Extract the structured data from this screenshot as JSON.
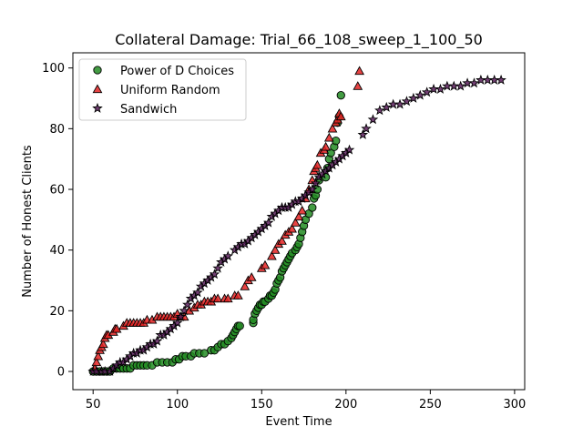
{
  "chart_data": {
    "type": "scatter",
    "title": "Collateral Damage: Trial_66_108_sweep_1_100_50",
    "xlabel": "Event Time",
    "ylabel": "Number of Honest Clients",
    "xlim": [
      38,
      306
    ],
    "ylim": [
      -6,
      105
    ],
    "xticks": [
      50,
      100,
      150,
      200,
      250,
      300
    ],
    "yticks": [
      0,
      20,
      40,
      60,
      80,
      100
    ],
    "legend_position": "top-left",
    "grid": false,
    "series": [
      {
        "name": "Power of D Choices",
        "marker": "circle",
        "color": "#228b22",
        "points": [
          [
            50,
            0
          ],
          [
            52,
            0
          ],
          [
            54,
            0
          ],
          [
            56,
            0
          ],
          [
            58,
            0
          ],
          [
            60,
            0
          ],
          [
            62,
            1
          ],
          [
            64,
            1
          ],
          [
            66,
            1
          ],
          [
            68,
            1
          ],
          [
            70,
            1
          ],
          [
            72,
            1
          ],
          [
            74,
            2
          ],
          [
            76,
            2
          ],
          [
            78,
            2
          ],
          [
            80,
            2
          ],
          [
            82,
            2
          ],
          [
            85,
            2
          ],
          [
            88,
            3
          ],
          [
            91,
            3
          ],
          [
            94,
            3
          ],
          [
            97,
            3
          ],
          [
            99,
            4
          ],
          [
            101,
            4
          ],
          [
            103,
            5
          ],
          [
            105,
            5
          ],
          [
            108,
            5
          ],
          [
            110,
            6
          ],
          [
            113,
            6
          ],
          [
            116,
            6
          ],
          [
            120,
            7
          ],
          [
            122,
            7
          ],
          [
            124,
            8
          ],
          [
            126,
            9
          ],
          [
            128,
            9
          ],
          [
            130,
            10
          ],
          [
            132,
            11
          ],
          [
            133,
            12
          ],
          [
            134,
            13
          ],
          [
            135,
            14
          ],
          [
            136,
            15
          ],
          [
            137,
            15
          ],
          [
            145,
            16
          ],
          [
            145,
            17
          ],
          [
            146,
            19
          ],
          [
            147,
            20
          ],
          [
            148,
            21
          ],
          [
            149,
            22
          ],
          [
            150,
            22
          ],
          [
            151,
            23
          ],
          [
            152,
            23
          ],
          [
            154,
            24
          ],
          [
            155,
            25
          ],
          [
            156,
            25
          ],
          [
            157,
            26
          ],
          [
            158,
            27
          ],
          [
            159,
            29
          ],
          [
            160,
            30
          ],
          [
            161,
            31
          ],
          [
            162,
            33
          ],
          [
            163,
            34
          ],
          [
            164,
            35
          ],
          [
            165,
            36
          ],
          [
            166,
            37
          ],
          [
            167,
            38
          ],
          [
            168,
            39
          ],
          [
            170,
            40
          ],
          [
            171,
            41
          ],
          [
            172,
            42
          ],
          [
            173,
            44
          ],
          [
            174,
            46
          ],
          [
            175,
            48
          ],
          [
            176,
            50
          ],
          [
            178,
            52
          ],
          [
            180,
            54
          ],
          [
            181,
            57
          ],
          [
            182,
            58
          ],
          [
            183,
            60
          ],
          [
            184,
            63
          ],
          [
            188,
            64
          ],
          [
            189,
            67
          ],
          [
            190,
            70
          ],
          [
            191,
            72
          ],
          [
            193,
            74
          ],
          [
            194,
            76
          ],
          [
            195,
            82
          ],
          [
            196,
            84
          ],
          [
            197,
            91
          ]
        ]
      },
      {
        "name": "Uniform Random",
        "marker": "triangle",
        "color": "#e32222",
        "points": [
          [
            51,
            1
          ],
          [
            52,
            3
          ],
          [
            53,
            5
          ],
          [
            54,
            7
          ],
          [
            55,
            8
          ],
          [
            56,
            9
          ],
          [
            57,
            11
          ],
          [
            58,
            12
          ],
          [
            59,
            12
          ],
          [
            62,
            13
          ],
          [
            63,
            14
          ],
          [
            64,
            14
          ],
          [
            68,
            15
          ],
          [
            70,
            16
          ],
          [
            72,
            16
          ],
          [
            74,
            16
          ],
          [
            76,
            16
          ],
          [
            78,
            16
          ],
          [
            80,
            16
          ],
          [
            82,
            17
          ],
          [
            85,
            17
          ],
          [
            88,
            18
          ],
          [
            90,
            18
          ],
          [
            92,
            18
          ],
          [
            94,
            18
          ],
          [
            96,
            18
          ],
          [
            98,
            18
          ],
          [
            100,
            19
          ],
          [
            102,
            18
          ],
          [
            104,
            18
          ],
          [
            107,
            20
          ],
          [
            110,
            21
          ],
          [
            112,
            22
          ],
          [
            114,
            22
          ],
          [
            116,
            23
          ],
          [
            118,
            23
          ],
          [
            120,
            23
          ],
          [
            122,
            24
          ],
          [
            124,
            24
          ],
          [
            128,
            24
          ],
          [
            130,
            24
          ],
          [
            134,
            25
          ],
          [
            136,
            25
          ],
          [
            140,
            28
          ],
          [
            142,
            30
          ],
          [
            144,
            31
          ],
          [
            150,
            34
          ],
          [
            152,
            35
          ],
          [
            156,
            38
          ],
          [
            158,
            40
          ],
          [
            160,
            42
          ],
          [
            162,
            43
          ],
          [
            164,
            45
          ],
          [
            166,
            46
          ],
          [
            168,
            47
          ],
          [
            170,
            49
          ],
          [
            172,
            51
          ],
          [
            174,
            53
          ],
          [
            176,
            57
          ],
          [
            178,
            60
          ],
          [
            180,
            63
          ],
          [
            181,
            66
          ],
          [
            182,
            67
          ],
          [
            183,
            68
          ],
          [
            185,
            72
          ],
          [
            187,
            73
          ],
          [
            188,
            74
          ],
          [
            190,
            77
          ],
          [
            192,
            80
          ],
          [
            194,
            82
          ],
          [
            195,
            83
          ],
          [
            196,
            85
          ],
          [
            197,
            84
          ],
          [
            207,
            94
          ],
          [
            208,
            99
          ]
        ]
      },
      {
        "name": "Sandwich",
        "marker": "star",
        "color": "#5a1f5c",
        "points": [
          [
            50,
            0
          ],
          [
            52,
            0
          ],
          [
            55,
            0
          ],
          [
            57,
            0
          ],
          [
            60,
            0
          ],
          [
            62,
            1
          ],
          [
            64,
            2
          ],
          [
            66,
            3
          ],
          [
            68,
            3
          ],
          [
            70,
            4
          ],
          [
            72,
            5
          ],
          [
            74,
            6
          ],
          [
            76,
            6
          ],
          [
            78,
            7
          ],
          [
            80,
            7
          ],
          [
            82,
            8
          ],
          [
            84,
            9
          ],
          [
            86,
            9
          ],
          [
            88,
            10
          ],
          [
            90,
            12
          ],
          [
            92,
            12
          ],
          [
            94,
            13
          ],
          [
            96,
            14
          ],
          [
            98,
            15
          ],
          [
            100,
            16
          ],
          [
            102,
            18
          ],
          [
            104,
            20
          ],
          [
            106,
            22
          ],
          [
            108,
            24
          ],
          [
            110,
            25
          ],
          [
            112,
            26
          ],
          [
            114,
            28
          ],
          [
            116,
            29
          ],
          [
            118,
            30
          ],
          [
            120,
            31
          ],
          [
            122,
            32
          ],
          [
            124,
            34
          ],
          [
            126,
            36
          ],
          [
            128,
            37
          ],
          [
            130,
            38
          ],
          [
            134,
            40
          ],
          [
            136,
            41
          ],
          [
            138,
            42
          ],
          [
            140,
            42
          ],
          [
            142,
            43
          ],
          [
            144,
            44
          ],
          [
            146,
            45
          ],
          [
            148,
            46
          ],
          [
            150,
            47
          ],
          [
            152,
            48
          ],
          [
            154,
            49
          ],
          [
            156,
            51
          ],
          [
            158,
            52
          ],
          [
            160,
            53
          ],
          [
            162,
            54
          ],
          [
            164,
            54
          ],
          [
            166,
            54
          ],
          [
            168,
            55
          ],
          [
            170,
            56
          ],
          [
            172,
            56
          ],
          [
            174,
            57
          ],
          [
            176,
            58
          ],
          [
            178,
            59
          ],
          [
            180,
            60
          ],
          [
            182,
            62
          ],
          [
            184,
            64
          ],
          [
            186,
            65
          ],
          [
            188,
            66
          ],
          [
            190,
            67
          ],
          [
            192,
            68
          ],
          [
            194,
            69
          ],
          [
            196,
            70
          ],
          [
            198,
            71
          ],
          [
            200,
            72
          ],
          [
            202,
            73
          ],
          [
            210,
            78
          ],
          [
            212,
            80
          ],
          [
            216,
            83
          ],
          [
            220,
            86
          ],
          [
            224,
            87
          ],
          [
            228,
            88
          ],
          [
            232,
            88
          ],
          [
            236,
            89
          ],
          [
            240,
            90
          ],
          [
            244,
            91
          ],
          [
            248,
            92
          ],
          [
            252,
            93
          ],
          [
            256,
            93
          ],
          [
            260,
            94
          ],
          [
            264,
            94
          ],
          [
            268,
            94
          ],
          [
            272,
            95
          ],
          [
            276,
            95
          ],
          [
            280,
            96
          ],
          [
            284,
            96
          ],
          [
            288,
            96
          ],
          [
            292,
            96
          ]
        ]
      }
    ]
  }
}
